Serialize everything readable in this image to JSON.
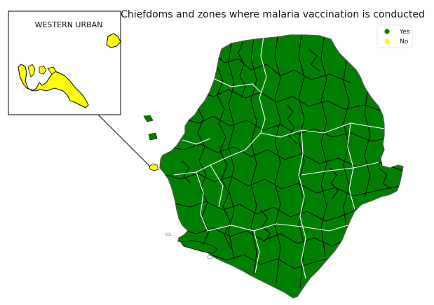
{
  "title": "Chiefdoms and zones where malaria vaccination is conducted",
  "legend": {
    "placement": "top-right",
    "items": [
      {
        "label": "Yes",
        "color": "#008000"
      },
      {
        "label": "No",
        "color": "#ffff00"
      }
    ]
  },
  "inset": {
    "label": "WESTERN URBAN",
    "status": "No"
  },
  "regions": {
    "vaccinated_chiefdoms": "Yes",
    "western_urban": "No"
  },
  "colors": {
    "yes_fill": "#008000",
    "no_fill": "#ffff00",
    "chiefdom_border": "#000000",
    "district_border": "#ffffff"
  }
}
